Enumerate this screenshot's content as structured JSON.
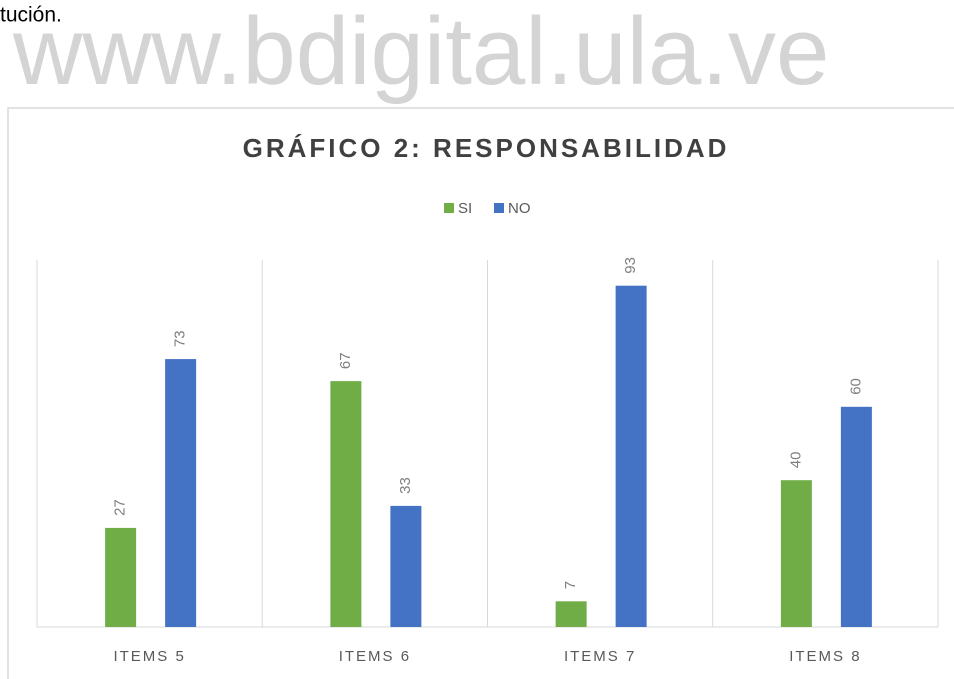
{
  "document": {
    "text": "tución.",
    "watermark": "www.bdigital.ula.ve"
  },
  "chart_data": {
    "type": "bar",
    "title": "GRÁFICO 2: RESPONSABILIDAD",
    "categories": [
      "ITEMS 5",
      "ITEMS 6",
      "ITEMS 7",
      "ITEMS 8"
    ],
    "series": [
      {
        "name": "SI",
        "color": "#70ad47",
        "values": [
          27,
          67,
          7,
          40
        ]
      },
      {
        "name": "NO",
        "color": "#4472c4",
        "values": [
          73,
          33,
          93,
          60
        ]
      }
    ],
    "ylim": [
      0,
      100
    ],
    "legend": "top"
  }
}
